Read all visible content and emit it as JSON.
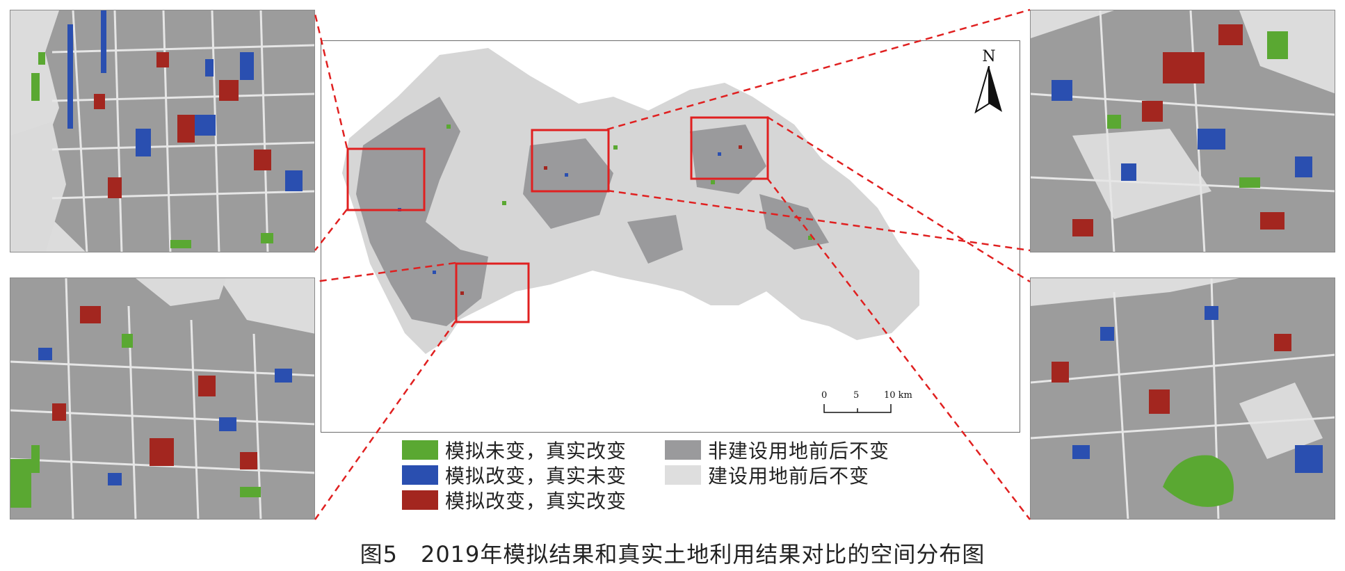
{
  "legend": {
    "items": [
      {
        "label": "模拟未变，真实改变",
        "color": "#5aa832"
      },
      {
        "label": "模拟改变，真实未变",
        "color": "#2a4fb0"
      },
      {
        "label": "模拟改变，真实改变",
        "color": "#a3261f"
      },
      {
        "label": "非建设用地前后不变",
        "color": "#9a9a9c"
      },
      {
        "label": "建设用地前后不变",
        "color": "#dedede"
      }
    ]
  },
  "caption": "图5　2019年模拟结果和真实土地利用结果对比的空间分布图",
  "map": {
    "north_label": "N",
    "scale": {
      "ticks": [
        "0",
        "5",
        "10 km"
      ]
    },
    "highlight_color": "#e02020"
  }
}
